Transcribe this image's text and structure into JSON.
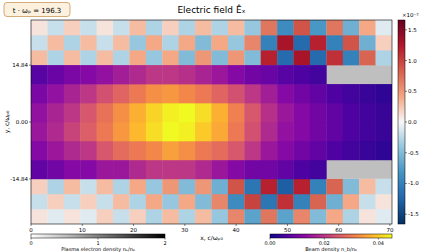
{
  "chart_data": {
    "type": "heatmap",
    "time_label": "t · ωₚ = 196.3",
    "title": "Electric field Êₓ",
    "x_label": "x, c/ωₚ₀",
    "y_label": "y, c/ωₚ₀",
    "xlim": [
      0,
      70.4
    ],
    "ylim": [
      -26.6,
      26.6
    ],
    "xticks": [
      0,
      10,
      20,
      30,
      40,
      50,
      60,
      70
    ],
    "yticks": [
      -14.84,
      {
        "value": 0,
        "label": "0.00"
      },
      14.84
    ],
    "plasma_density": {
      "y_edges": [
        -26.6,
        -14.84,
        14.84,
        26.6
      ],
      "values": [
        0,
        1,
        0
      ]
    },
    "ex_field": {
      "x_edges": [
        0,
        3.2,
        6.4,
        9.6,
        12.8,
        16,
        19.2,
        22.4,
        25.6,
        28.8,
        32,
        35.2,
        38.4,
        41.6,
        44.8,
        48,
        51.2,
        54.4,
        57.6,
        60.8,
        64,
        67.2,
        70.4
      ],
      "y_edges": [
        -26.6,
        -22.68,
        -18.76,
        -14.84,
        14.84,
        18.76,
        22.68,
        26.6
      ],
      "values": [
        [
          0.1,
          -0.1,
          0.1,
          -0.1,
          0.2,
          -0.2,
          0.2,
          -0.3,
          0.3,
          -0.3,
          0.3,
          -0.4,
          0.6,
          -0.7,
          0.7,
          -0.7,
          0.6,
          -0.5,
          0.4,
          -0.3,
          0.1,
          -0.1
        ],
        [
          -0.2,
          0.2,
          -0.2,
          0.2,
          -0.2,
          0.3,
          -0.3,
          0.4,
          -0.4,
          0.4,
          -0.5,
          0.6,
          -0.9,
          1.0,
          -1.1,
          1.1,
          -1.0,
          0.8,
          -0.6,
          0.4,
          -0.2,
          0.1
        ],
        [
          0.2,
          -0.3,
          0.3,
          -0.2,
          0.3,
          -0.3,
          0.4,
          -0.4,
          0.5,
          -0.5,
          0.5,
          -0.6,
          0.9,
          -1.1,
          1.2,
          -1.3,
          1.2,
          -1.0,
          0.8,
          -0.5,
          0.3,
          -0.2
        ],
        [
          null,
          null,
          null,
          null,
          null,
          null,
          null,
          null,
          null,
          null,
          null,
          null,
          null,
          null,
          null,
          null,
          null,
          null,
          null,
          null,
          null,
          null
        ],
        [
          0.3,
          -0.3,
          0.3,
          -0.3,
          0.3,
          -0.3,
          0.4,
          -0.4,
          0.4,
          -0.5,
          0.5,
          -0.5,
          0.5,
          -0.5,
          1.2,
          -1.2,
          1.3,
          -1.2,
          1.1,
          -1.0,
          0.8,
          -0.3
        ],
        [
          -0.2,
          0.3,
          -0.3,
          0.3,
          -0.2,
          0.3,
          -0.4,
          0.4,
          -0.3,
          0.4,
          -0.5,
          0.4,
          -0.4,
          0.6,
          -1.0,
          1.3,
          -1.2,
          1.2,
          -1.0,
          0.9,
          -0.6,
          0.2
        ],
        [
          0.1,
          -0.2,
          0.2,
          -0.2,
          0.1,
          -0.2,
          0.3,
          -0.3,
          0.2,
          -0.3,
          0.3,
          -0.3,
          0.3,
          -0.4,
          0.7,
          -0.9,
          0.9,
          -0.8,
          0.7,
          -0.6,
          0.4,
          -0.1
        ]
      ]
    },
    "ex_colorbar": {
      "range": [
        -1.66,
        1.66
      ],
      "ticks": [
        1.5,
        {
          "value": 1,
          "label": "1.0"
        },
        0.5,
        {
          "value": 0,
          "label": "0.0"
        },
        -0.5,
        {
          "value": -1,
          "label": "-1.0"
        },
        -1.5
      ],
      "label": "×10⁻²"
    },
    "beam_density": {
      "x_edges": [
        0,
        3.2,
        6.4,
        9.6,
        12.8,
        16,
        19.2,
        22.4,
        25.6,
        28.8,
        32,
        35.2,
        38.4,
        41.6,
        44.8,
        48,
        51.2,
        54.4,
        57.6,
        60.8,
        64,
        67.2,
        70.4
      ],
      "y_edges": [
        -14.84,
        -9.89,
        -4.95,
        0,
        4.95,
        9.89,
        14.84
      ],
      "values": [
        [
          0.008,
          0.01,
          0.012,
          0.012,
          0.015,
          0.015,
          0.018,
          0.02,
          0.02,
          0.02,
          0.018,
          0.015,
          0.012,
          0.01,
          0.01,
          0.008,
          0.006,
          0.005,
          null,
          null,
          null,
          null
        ],
        [
          0.012,
          0.015,
          0.018,
          0.02,
          0.025,
          0.028,
          0.03,
          0.032,
          0.035,
          0.033,
          0.03,
          0.028,
          0.025,
          0.02,
          0.015,
          0.012,
          0.01,
          0.008,
          0.006,
          0.005,
          0.004,
          0.003
        ],
        [
          0.015,
          0.018,
          0.022,
          0.026,
          0.03,
          0.034,
          0.038,
          0.042,
          0.045,
          0.044,
          0.04,
          0.036,
          0.03,
          0.024,
          0.018,
          0.014,
          0.012,
          0.01,
          0.008,
          0.006,
          0.005,
          0.004
        ],
        [
          0.014,
          0.017,
          0.02,
          0.025,
          0.029,
          0.033,
          0.037,
          0.041,
          0.044,
          0.045,
          0.042,
          0.037,
          0.031,
          0.025,
          0.019,
          0.015,
          0.012,
          0.01,
          0.008,
          0.006,
          0.005,
          0.004
        ],
        [
          0.011,
          0.014,
          0.017,
          0.02,
          0.024,
          0.027,
          0.03,
          0.033,
          0.034,
          0.032,
          0.03,
          0.027,
          0.024,
          0.02,
          0.016,
          0.012,
          0.01,
          0.008,
          0.006,
          0.005,
          0.004,
          0.003
        ],
        [
          0.007,
          0.009,
          0.011,
          0.012,
          0.014,
          0.016,
          0.018,
          0.02,
          0.02,
          0.019,
          0.017,
          0.015,
          0.012,
          0.01,
          0.009,
          0.007,
          0.006,
          0.005,
          null,
          null,
          null,
          null
        ]
      ]
    },
    "plasma_colorbar": {
      "range": [
        0,
        2
      ],
      "ticks": [
        0,
        1,
        2
      ],
      "label": "Plasma electron density nₑ/n₀"
    },
    "beam_colorbar": {
      "range": [
        0,
        0.045
      ],
      "ticks": [
        {
          "value": 0,
          "label": "0.00"
        },
        0.02,
        0.04
      ],
      "label": "Beam density n_b/n₀"
    }
  }
}
